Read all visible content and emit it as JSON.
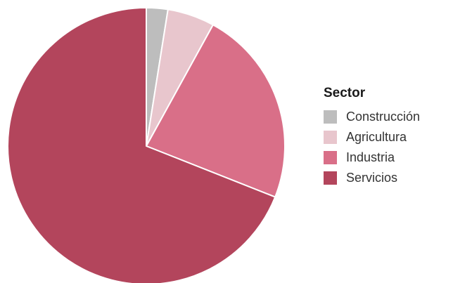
{
  "chart_data": {
    "type": "pie",
    "categories": [
      "Construcción",
      "Agricultura",
      "Industria",
      "Servicios"
    ],
    "values": [
      2.5,
      5.5,
      23,
      69
    ],
    "colors": [
      "#bdbdbd",
      "#e8c6cd",
      "#d96f88",
      "#b3455c"
    ],
    "legend_title": "Sector",
    "legend_position": "right",
    "start_angle": "top, clockwise"
  }
}
